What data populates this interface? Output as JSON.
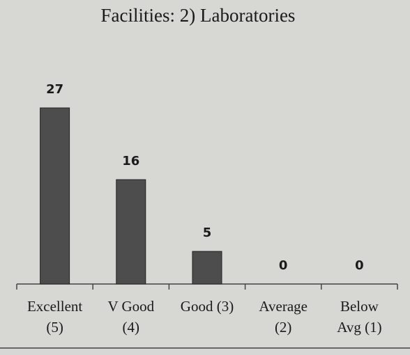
{
  "chart_data": {
    "type": "bar",
    "title": "Facilities: 2) Laboratories",
    "categories": [
      [
        "Excellent",
        "(5)"
      ],
      [
        "V Good",
        "(4)"
      ],
      [
        "Good (3)"
      ],
      [
        "Average",
        "(2)"
      ],
      [
        "Below",
        "Avg (1)"
      ]
    ],
    "values": [
      27,
      16,
      5,
      0,
      0
    ],
    "color": "#4d4d4d"
  }
}
